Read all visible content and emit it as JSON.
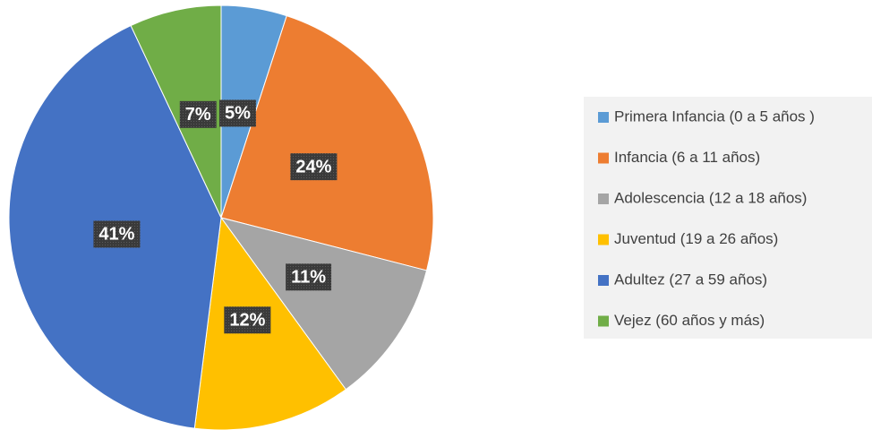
{
  "chart_data": {
    "type": "pie",
    "categories": [
      "Primera Infancia (0 a 5 años )",
      "Infancia (6 a 11 años)",
      "Adolescencia (12 a 18 años)",
      "Juventud (19 a 26 años)",
      "Adultez (27 a 59 años)",
      "Vejez (60 años y más)"
    ],
    "values": [
      5,
      24,
      11,
      12,
      41,
      7
    ],
    "value_labels": [
      "5%",
      "24%",
      "11%",
      "12%",
      "41%",
      "7%"
    ],
    "colors": [
      "#5b9bd5",
      "#ed7d31",
      "#a5a5a5",
      "#ffc000",
      "#4472c4",
      "#70ad47"
    ],
    "legend": "right"
  }
}
